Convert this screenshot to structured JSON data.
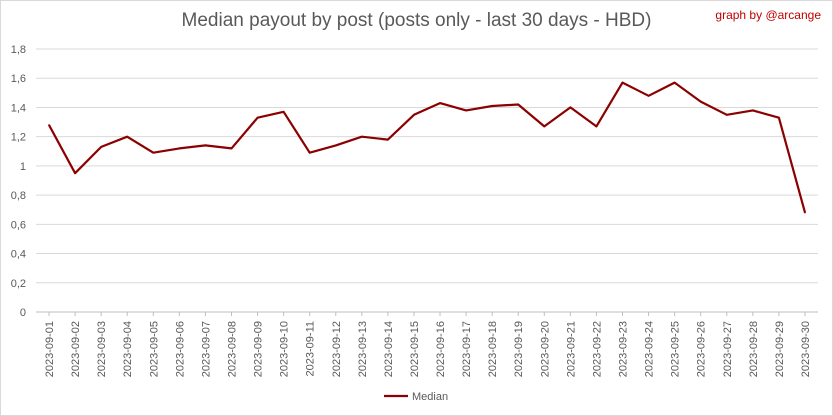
{
  "chart_data": {
    "type": "line",
    "title": "Median payout by post (posts only - last 30 days - HBD)",
    "credit": "graph by @arcange",
    "xlabel": "",
    "ylabel": "",
    "ylim": [
      0,
      1.8
    ],
    "y_ticks": [
      "0",
      "0,2",
      "0,4",
      "0,6",
      "0,8",
      "1",
      "1,2",
      "1,4",
      "1,6",
      "1,8"
    ],
    "grid": true,
    "legend_position": "bottom",
    "categories": [
      "2023-09-01",
      "2023-09-02",
      "2023-09-03",
      "2023-09-04",
      "2023-09-05",
      "2023-09-06",
      "2023-09-07",
      "2023-09-08",
      "2023-09-09",
      "2023-09-10",
      "2023-09-11",
      "2023-09-12",
      "2023-09-13",
      "2023-09-14",
      "2023-09-15",
      "2023-09-16",
      "2023-09-17",
      "2023-09-18",
      "2023-09-19",
      "2023-09-20",
      "2023-09-21",
      "2023-09-22",
      "2023-09-23",
      "2023-09-24",
      "2023-09-25",
      "2023-09-26",
      "2023-09-27",
      "2023-09-28",
      "2023-09-29",
      "2023-09-30"
    ],
    "series": [
      {
        "name": "Median",
        "color": "#8b0000",
        "values": [
          1.28,
          0.95,
          1.13,
          1.2,
          1.09,
          1.12,
          1.14,
          1.12,
          1.33,
          1.37,
          1.09,
          1.14,
          1.2,
          1.18,
          1.35,
          1.43,
          1.38,
          1.41,
          1.42,
          1.27,
          1.4,
          1.27,
          1.57,
          1.48,
          1.57,
          1.44,
          1.35,
          1.38,
          1.33,
          0.68
        ]
      }
    ]
  }
}
